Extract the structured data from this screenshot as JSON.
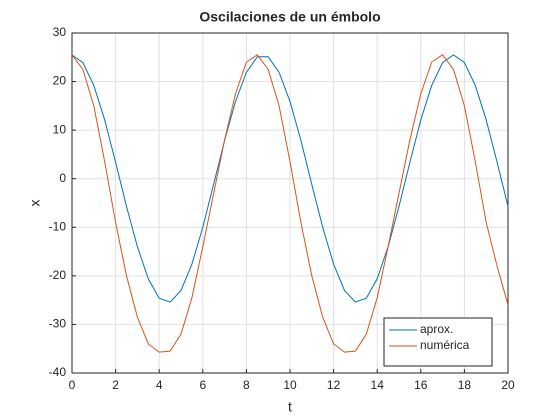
{
  "chart_data": {
    "type": "line",
    "title": "Oscilaciones de un émbolo",
    "xlabel": "t",
    "ylabel": "x",
    "x": [
      0,
      0.5,
      1,
      1.5,
      2,
      2.5,
      3,
      3.5,
      4,
      4.5,
      5,
      5.5,
      6,
      6.5,
      7,
      7.5,
      8,
      8.5,
      9,
      9.5,
      10,
      10.5,
      11,
      11.5,
      12,
      12.5,
      13,
      13.5,
      14,
      14.5,
      15,
      15.5,
      16,
      16.5,
      17,
      17.5,
      18,
      18.5,
      19,
      19.5,
      20
    ],
    "series": [
      {
        "name": "aprox.",
        "color": "#0072bd",
        "values": [
          25.5,
          23.9,
          19.2,
          12.1,
          3.4,
          -5.7,
          -14.0,
          -20.6,
          -24.6,
          -25.4,
          -23.0,
          -17.6,
          -10.0,
          -1.1,
          7.9,
          15.9,
          21.9,
          25.1,
          25.1,
          21.9,
          15.9,
          7.9,
          -1.2,
          -10.0,
          -17.6,
          -23.0,
          -25.4,
          -24.6,
          -20.6,
          -14.0,
          -5.7,
          3.4,
          12.1,
          19.2,
          23.9,
          25.5,
          23.9,
          19.2,
          12.1,
          3.4,
          -5.7
        ]
      },
      {
        "name": "numérica",
        "color": "#d95319",
        "values": [
          25.5,
          22.5,
          15,
          3.5,
          -9,
          -20,
          -28.5,
          -34,
          -35.7,
          -35.5,
          -32,
          -24.5,
          -14,
          -3,
          8,
          17.5,
          24,
          25.5,
          22.5,
          15,
          3.5,
          -9,
          -20,
          -28.5,
          -34,
          -35.7,
          -35.5,
          -32,
          -24.5,
          -14,
          -3,
          8,
          17.5,
          24,
          25.5,
          22.5,
          15,
          3.5,
          -9,
          -18,
          -26
        ]
      }
    ],
    "xlim": [
      0,
      20
    ],
    "xticks": [
      0,
      2,
      4,
      6,
      8,
      10,
      12,
      14,
      16,
      18,
      20
    ],
    "ylim": [
      -40,
      30
    ],
    "yticks": [
      -40,
      -30,
      -20,
      -10,
      0,
      10,
      20,
      30
    ],
    "grid": true,
    "legend": "southeast"
  }
}
